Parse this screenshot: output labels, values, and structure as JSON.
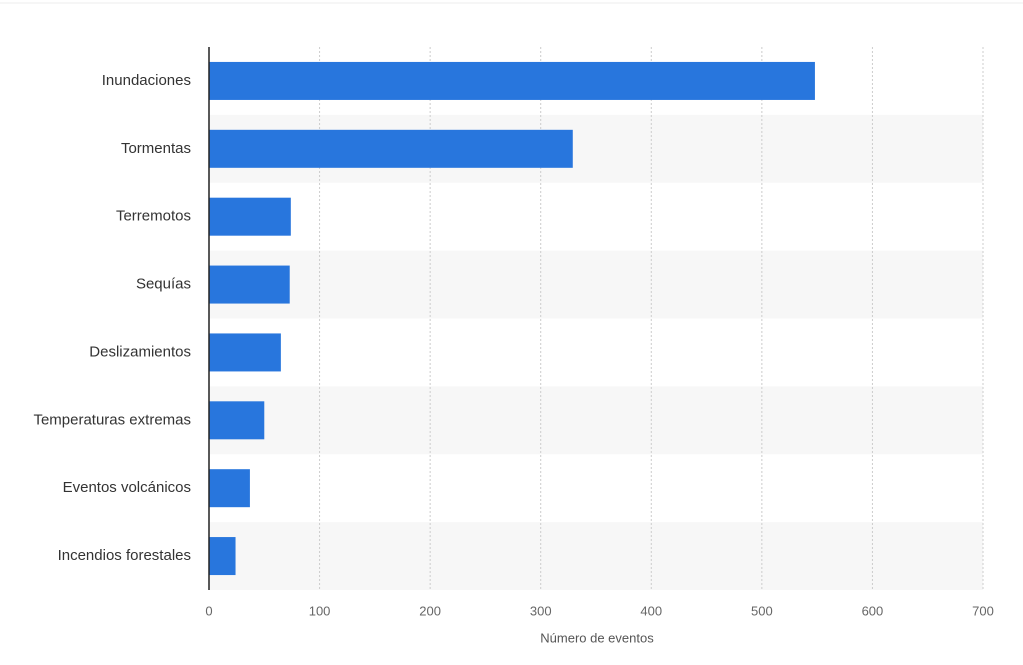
{
  "chart_data": {
    "type": "bar",
    "orientation": "horizontal",
    "x_label": "Número de eventos",
    "categories": [
      "Inundaciones",
      "Tormentas",
      "Terremotos",
      "Sequías",
      "Deslizamientos",
      "Temperaturas extremas",
      "Eventos volcánicos",
      "Incendios forestales"
    ],
    "values": [
      548,
      329,
      74,
      73,
      65,
      50,
      37,
      24
    ],
    "color": "#2876dd",
    "xlim": [
      0,
      700
    ],
    "xticks": [
      0,
      100,
      200,
      300,
      400,
      500,
      600,
      700
    ],
    "grid": true
  }
}
